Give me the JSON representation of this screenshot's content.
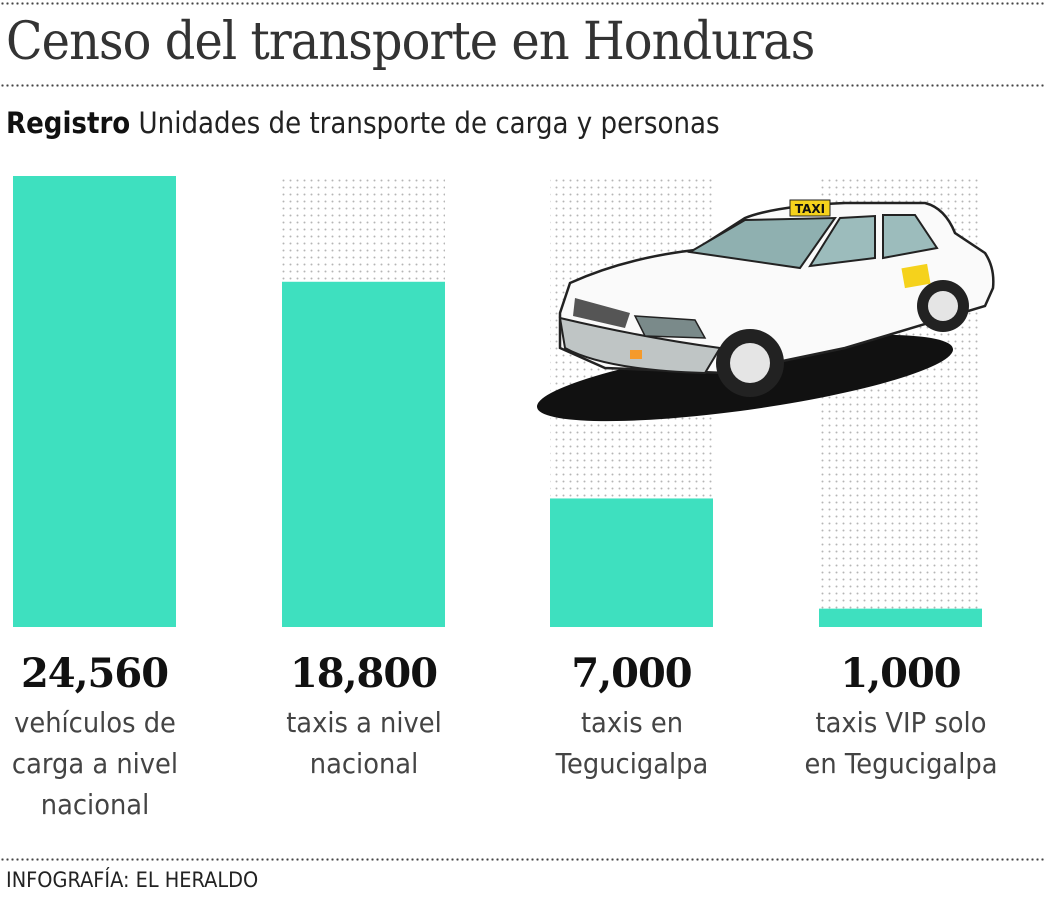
{
  "title": "Censo del transporte en Honduras",
  "subtitle": {
    "bold": "Registro",
    "text": "Unidades de transporte de carga y personas"
  },
  "credit": "INFOGRAFÍA: EL HERALDO",
  "colors": {
    "bar": "#3ee0bf",
    "dots": "#bbbbbb",
    "taxi_sign": "#f5d21c"
  },
  "illustration": {
    "icon": "taxi-car-icon",
    "sign_text": "TAXI"
  },
  "chart_data": {
    "type": "bar",
    "title": "Censo del transporte en Honduras",
    "categories": [
      "vehículos de carga a nivel nacional",
      "taxis a nivel nacional",
      "taxis en Tegucigalpa",
      "taxis VIP solo en Tegucigalpa"
    ],
    "values": [
      24560,
      18800,
      7000,
      1000
    ],
    "value_labels": [
      "24,560",
      "18,800",
      "7,000",
      "1,000"
    ],
    "label_lines": [
      [
        "vehículos de",
        "carga a nivel",
        "nacional"
      ],
      [
        "taxis a nivel",
        "nacional"
      ],
      [
        "taxis en",
        "Tegucigalpa"
      ],
      [
        "taxis VIP solo",
        "en Tegucigalpa"
      ]
    ],
    "ylim": [
      0,
      24560
    ],
    "grid": false,
    "axes_visible": false
  }
}
